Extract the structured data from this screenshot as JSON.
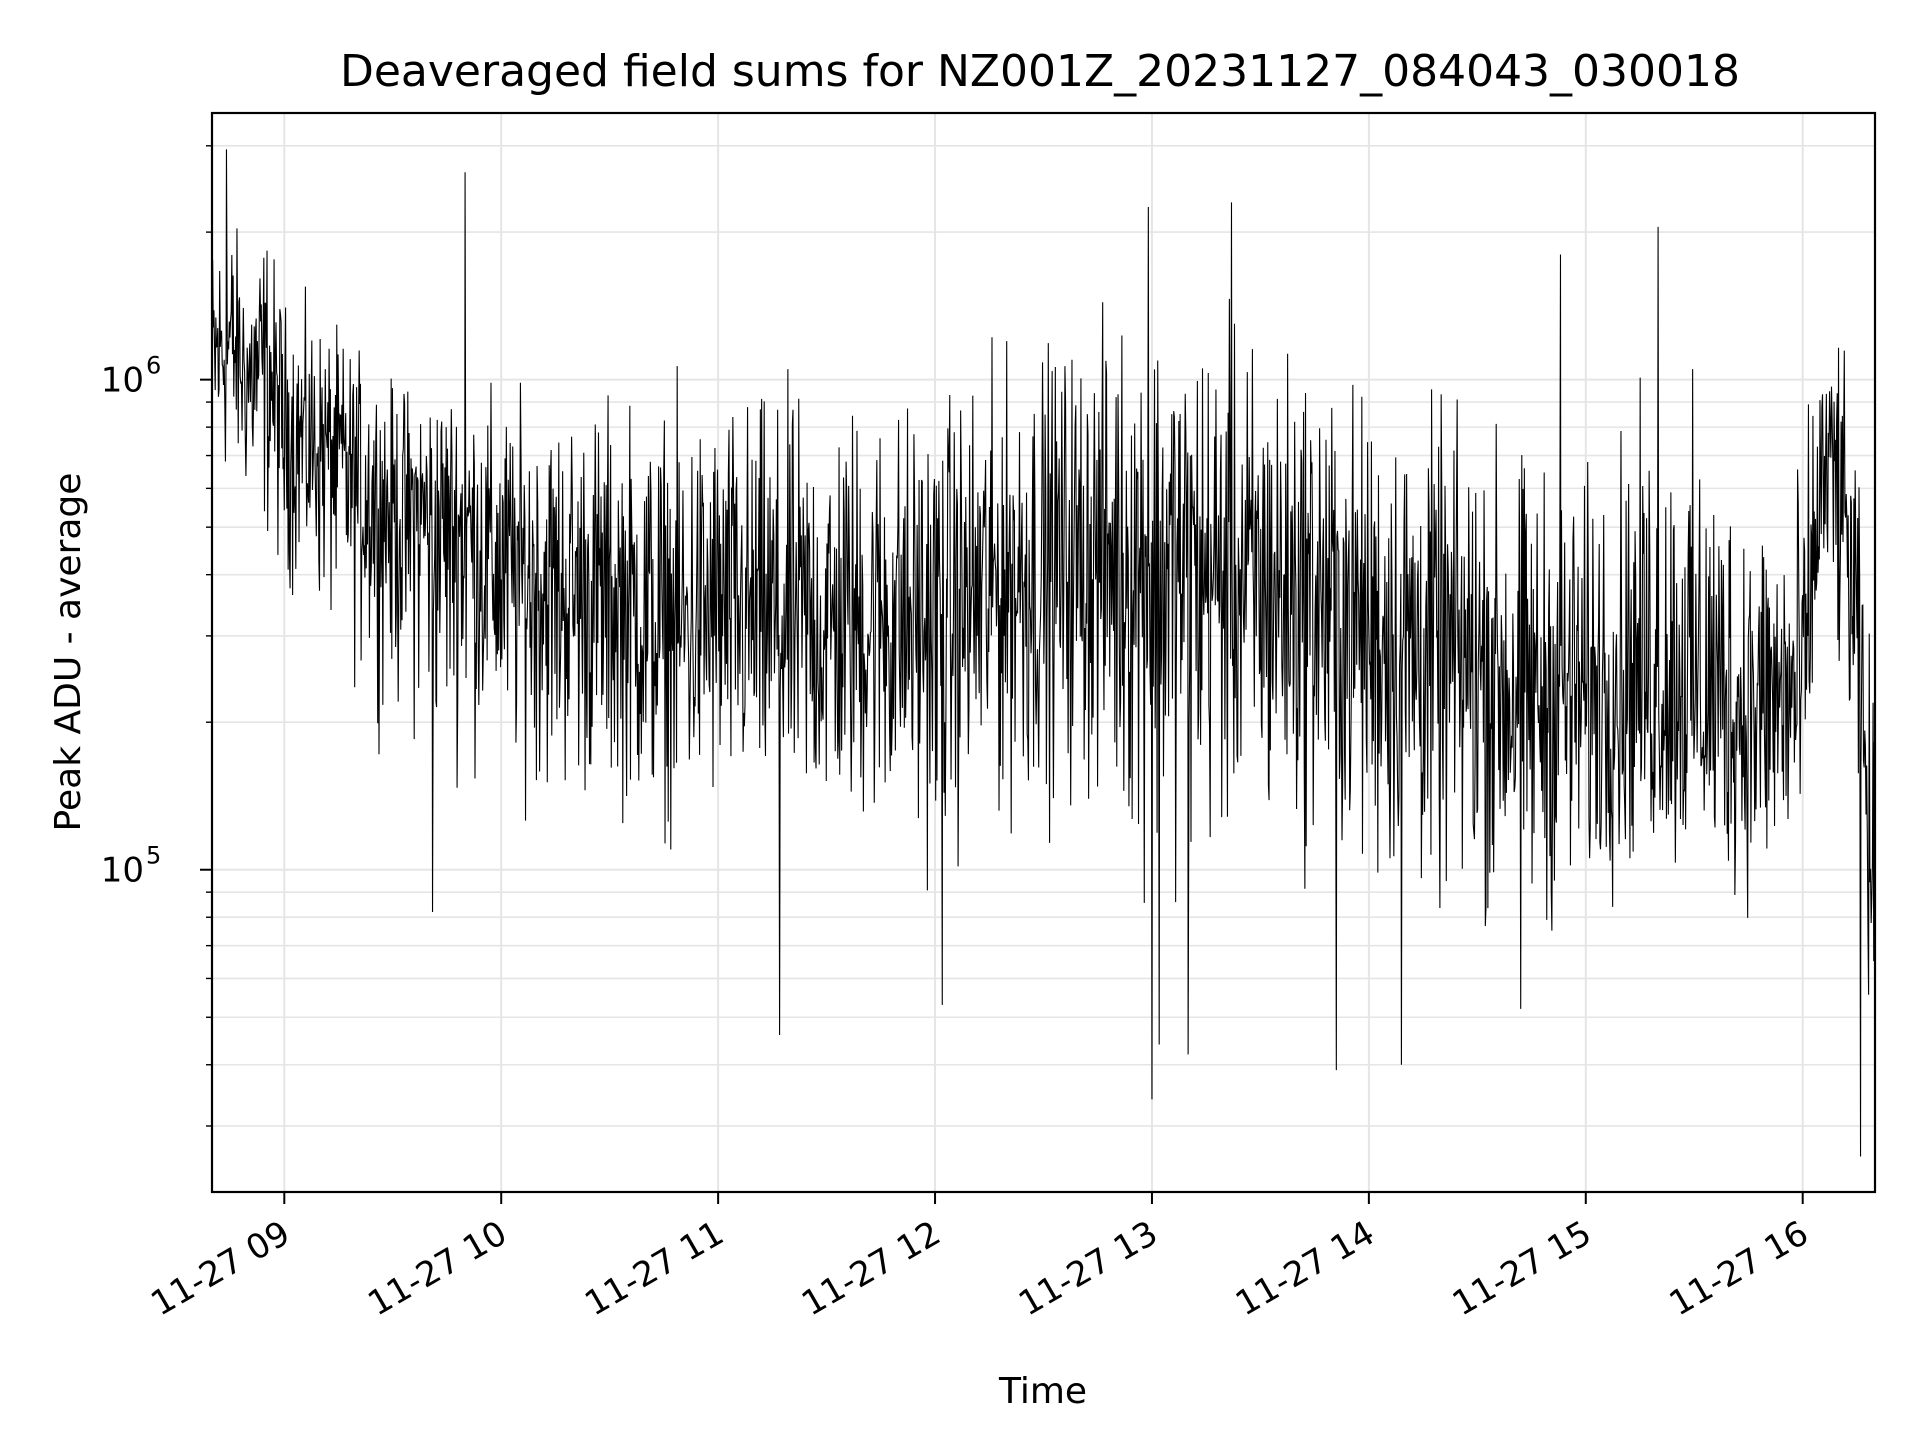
{
  "chart_data": {
    "type": "line",
    "title": "Deaveraged field sums for NZ001Z_20231127_084043_030018",
    "xlabel": "Time",
    "ylabel": "Peak ADU - average",
    "yscale": "log",
    "ylim": [
      22000,
      3500000
    ],
    "xlim": [
      "2023-11-27 08:40",
      "2023-11-27 16:20"
    ],
    "grid": true,
    "line_color": "#000000",
    "grid_color": "#e5e5e5",
    "x_ticks": [
      {
        "value": "2023-11-27 09:00",
        "label": "11-27 09"
      },
      {
        "value": "2023-11-27 10:00",
        "label": "11-27 10"
      },
      {
        "value": "2023-11-27 11:00",
        "label": "11-27 11"
      },
      {
        "value": "2023-11-27 12:00",
        "label": "11-27 12"
      },
      {
        "value": "2023-11-27 13:00",
        "label": "11-27 13"
      },
      {
        "value": "2023-11-27 14:00",
        "label": "11-27 14"
      },
      {
        "value": "2023-11-27 15:00",
        "label": "11-27 15"
      },
      {
        "value": "2023-11-27 16:00",
        "label": "11-27 16"
      }
    ],
    "y_ticks": [
      {
        "value": 100000,
        "base": "10",
        "exponent": "5"
      },
      {
        "value": 1000000,
        "base": "10",
        "exponent": "6"
      }
    ],
    "series": [
      {
        "x": [
          "2023-11-27 08:40",
          "2023-11-27 08:45",
          "2023-11-27 08:50",
          "2023-11-27 08:55",
          "2023-11-27 09:00",
          "2023-11-27 09:10",
          "2023-11-27 09:20",
          "2023-11-27 09:30",
          "2023-11-27 09:40",
          "2023-11-27 09:50",
          "2023-11-27 10:00",
          "2023-11-27 10:15",
          "2023-11-27 10:30",
          "2023-11-27 10:45",
          "2023-11-27 11:00",
          "2023-11-27 11:15",
          "2023-11-27 11:30",
          "2023-11-27 11:45",
          "2023-11-27 12:00",
          "2023-11-27 12:15",
          "2023-11-27 12:30",
          "2023-11-27 12:45",
          "2023-11-27 13:00",
          "2023-11-27 13:15",
          "2023-11-27 13:30",
          "2023-11-27 13:45",
          "2023-11-27 14:00",
          "2023-11-27 14:15",
          "2023-11-27 14:30",
          "2023-11-27 14:45",
          "2023-11-27 15:00",
          "2023-11-27 15:15",
          "2023-11-27 15:30",
          "2023-11-27 15:45",
          "2023-11-27 16:00",
          "2023-11-27 16:05",
          "2023-11-27 16:10",
          "2023-11-27 16:15",
          "2023-11-27 16:20"
        ],
        "y": [
          1100000,
          1200000,
          1000000,
          1100000,
          800000,
          750000,
          650000,
          550000,
          550000,
          500000,
          420000,
          380000,
          350000,
          300000,
          330000,
          320000,
          300000,
          330000,
          320000,
          380000,
          420000,
          450000,
          420000,
          400000,
          380000,
          370000,
          320000,
          280000,
          260000,
          220000,
          230000,
          250000,
          230000,
          200000,
          220000,
          600000,
          700000,
          300000,
          70000
        ],
        "envelope_high": [
          2500000,
          2700000,
          2200000,
          2600000,
          1800000,
          1600000,
          1400000,
          1200000,
          1200000,
          1300000,
          1200000,
          1200000,
          1300000,
          1300000,
          1300000,
          1300000,
          1400000,
          1300000,
          1300000,
          1500000,
          1700000,
          1800000,
          2200000,
          2000000,
          1800000,
          1600000,
          1300000,
          1300000,
          1200000,
          1000000,
          900000,
          1300000,
          1400000,
          900000,
          1000000,
          1600000,
          1500000,
          900000,
          300000
        ],
        "envelope_low": [
          450000,
          500000,
          450000,
          350000,
          300000,
          250000,
          180000,
          150000,
          120000,
          120000,
          110000,
          100000,
          100000,
          90000,
          90000,
          90000,
          90000,
          80000,
          70000,
          80000,
          90000,
          90000,
          60000,
          70000,
          70000,
          70000,
          60000,
          55000,
          55000,
          50000,
          60000,
          70000,
          70000,
          65000,
          70000,
          300000,
          150000,
          80000,
          30000
        ],
        "dips": [
          {
            "x": "2023-11-27 09:41",
            "y": 82000
          },
          {
            "x": "2023-11-27 11:17",
            "y": 46000
          },
          {
            "x": "2023-11-27 12:02",
            "y": 53000
          },
          {
            "x": "2023-11-27 13:00",
            "y": 34000
          },
          {
            "x": "2023-11-27 13:02",
            "y": 44000
          },
          {
            "x": "2023-11-27 13:10",
            "y": 42000
          },
          {
            "x": "2023-11-27 13:51",
            "y": 39000
          },
          {
            "x": "2023-11-27 14:09",
            "y": 40000
          },
          {
            "x": "2023-11-27 14:42",
            "y": 52000
          },
          {
            "x": "2023-11-27 16:16",
            "y": 26000
          }
        ],
        "spikes": [
          {
            "x": "2023-11-27 08:44",
            "y": 2950000
          },
          {
            "x": "2023-11-27 09:50",
            "y": 2650000
          },
          {
            "x": "2023-11-27 12:59",
            "y": 2250000
          },
          {
            "x": "2023-11-27 13:22",
            "y": 2300000
          },
          {
            "x": "2023-11-27 14:53",
            "y": 1800000
          },
          {
            "x": "2023-11-27 15:20",
            "y": 2050000
          }
        ]
      }
    ]
  }
}
